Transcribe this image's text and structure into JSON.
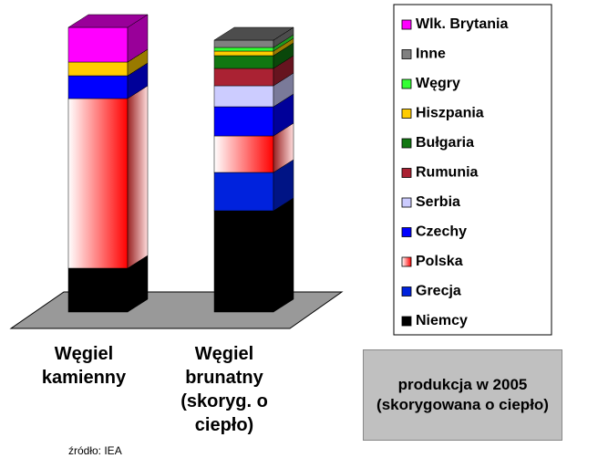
{
  "chart_data": {
    "type": "bar3d_stacked",
    "categories": [
      "Węgiel kamienny",
      "Węgiel brunatny (skoryg. o ciepło)"
    ],
    "ylim": [
      0,
      320
    ],
    "series": [
      {
        "name": "Niemcy",
        "color": "#000000",
        "values": [
          48,
          111
        ]
      },
      {
        "name": "Grecja",
        "color": "#0022dd",
        "values": [
          0,
          42
        ]
      },
      {
        "name": "Polska",
        "color": "#ff0000",
        "values": [
          186,
          40
        ]
      },
      {
        "name": "Czechy",
        "color": "#0000ff",
        "values": [
          25,
          32
        ]
      },
      {
        "name": "Serbia",
        "color": "#ccccff",
        "values": [
          0,
          23
        ]
      },
      {
        "name": "Rumunia",
        "color": "#aa2233",
        "values": [
          0,
          19
        ]
      },
      {
        "name": "Bułgaria",
        "color": "#117711",
        "values": [
          0,
          14
        ]
      },
      {
        "name": "Hiszpania",
        "color": "#ffcc00",
        "values": [
          15,
          5
        ]
      },
      {
        "name": "Węgry",
        "color": "#33ff33",
        "values": [
          0,
          4
        ]
      },
      {
        "name": "Inne",
        "color": "#808080",
        "values": [
          0,
          8
        ]
      },
      {
        "name": "Wlk. Brytania",
        "color": "#ff00ff",
        "values": [
          38,
          0
        ]
      }
    ],
    "annotation": "produkcja w 2005 (skorygowana o ciepło)",
    "source": "źródło: IEA"
  }
}
